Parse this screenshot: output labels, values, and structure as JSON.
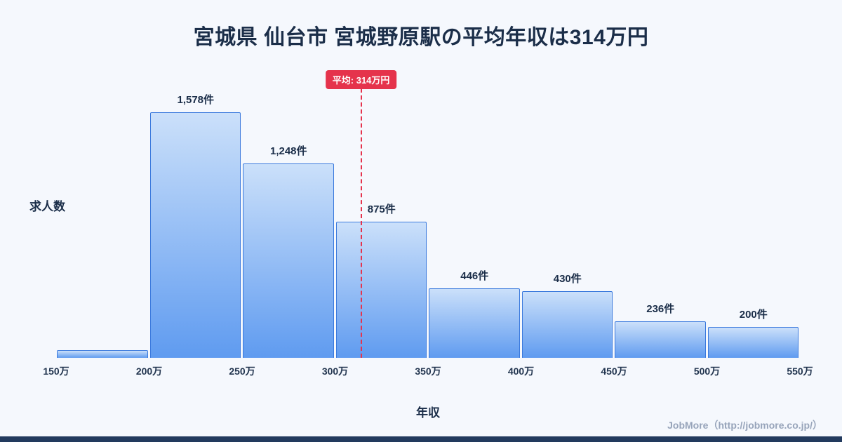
{
  "title": "宮城県 仙台市 宮城野原駅の平均年収は314万円",
  "ylabel": "求人数",
  "xlabel": "年収",
  "footer": "JobMore（http://jobmore.co.jp/）",
  "colors": {
    "background": "#f5f8fd",
    "bar_top": "#cbe0fa",
    "bar_bottom": "#5f9bf0",
    "bar_border": "#3a79dd",
    "average_red": "#e5334c",
    "text_ink": "#1b2e49",
    "footer_ink": "#97a4ba",
    "bottom_strip": "#223a5e"
  },
  "chart_data": {
    "type": "bar",
    "title": "宮城県 仙台市 宮城野原駅の平均年収は314万円",
    "xlabel": "年収",
    "ylabel": "求人数",
    "bin_edges": [
      150,
      200,
      250,
      300,
      350,
      400,
      450,
      500,
      550
    ],
    "bin_edge_labels": [
      "150万",
      "200万",
      "250万",
      "300万",
      "350万",
      "400万",
      "450万",
      "500万",
      "550万"
    ],
    "values": [
      50,
      1578,
      1248,
      875,
      446,
      430,
      236,
      200
    ],
    "value_labels": [
      "",
      "1,578件",
      "1,248件",
      "875件",
      "446件",
      "430件",
      "236件",
      "200件"
    ],
    "average": 314,
    "average_label": "平均: 314万円",
    "x_range": [
      150,
      550
    ],
    "y_max": 1578,
    "grid": false,
    "legend": false
  }
}
